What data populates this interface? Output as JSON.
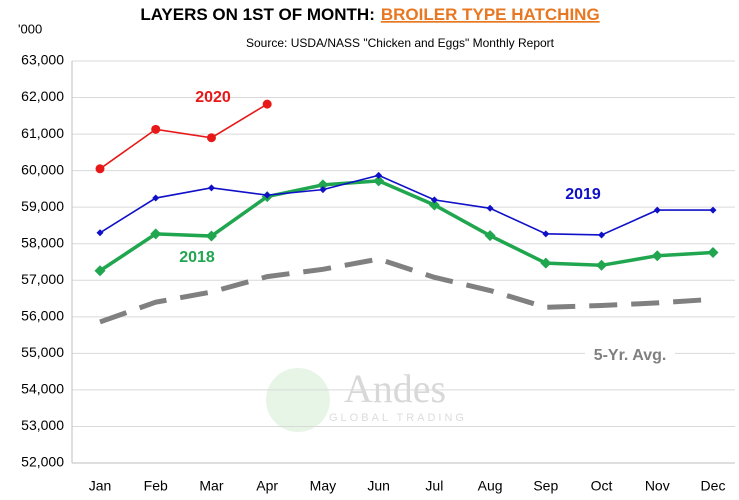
{
  "chart_data": {
    "type": "line",
    "title": "LAYERS ON 1ST OF MONTH:",
    "title_highlight": "BROILER TYPE HATCHING",
    "subtitle": "Source: USDA/NASS \"Chicken and Eggs\" Monthly Report",
    "y_unit": "'000",
    "watermark": [
      "Andes",
      "GLOBAL TRADING"
    ],
    "categories": [
      "Jan",
      "Feb",
      "Mar",
      "Apr",
      "May",
      "Jun",
      "Jul",
      "Aug",
      "Sep",
      "Oct",
      "Nov",
      "Dec"
    ],
    "series": [
      {
        "name": "5-Yr. Avg.",
        "color": "#808080",
        "dashed": true,
        "marker": null,
        "values": [
          55860,
          56400,
          56680,
          57100,
          57300,
          57580,
          57080,
          56720,
          56260,
          56310,
          56380,
          56480
        ]
      },
      {
        "name": "2018",
        "color": "#21a650",
        "dashed": false,
        "marker": "diamond",
        "values": [
          57260,
          58270,
          58210,
          59290,
          59610,
          59720,
          59060,
          58220,
          57470,
          57410,
          57670,
          57760
        ]
      },
      {
        "name": "2019",
        "color": "#1010c8",
        "dashed": false,
        "marker": "diamond",
        "values": [
          58300,
          59250,
          59530,
          59330,
          59480,
          59870,
          59200,
          58970,
          58270,
          58240,
          58920,
          58920
        ]
      },
      {
        "name": "2020",
        "color": "#e81818",
        "dashed": false,
        "marker": "circle",
        "values": [
          60050,
          61130,
          60900,
          61820,
          null,
          null,
          null,
          null,
          null,
          null,
          null,
          null
        ]
      }
    ],
    "ylim": [
      52000,
      63000
    ],
    "yticks": [
      {
        "value": 52000,
        "label": "52,000"
      },
      {
        "value": 53000,
        "label": "53,000"
      },
      {
        "value": 54000,
        "label": "54,000"
      },
      {
        "value": 55000,
        "label": "55,000"
      },
      {
        "value": 56000,
        "label": "56,000"
      },
      {
        "value": 57000,
        "label": "57,000"
      },
      {
        "value": 58000,
        "label": "58,000"
      },
      {
        "value": 59000,
        "label": "59,000"
      },
      {
        "value": 60000,
        "label": "60,000"
      },
      {
        "value": 61000,
        "label": "61,000"
      },
      {
        "value": 62000,
        "label": "62,000"
      },
      {
        "value": 63000,
        "label": "63,000"
      }
    ],
    "grid": true
  }
}
